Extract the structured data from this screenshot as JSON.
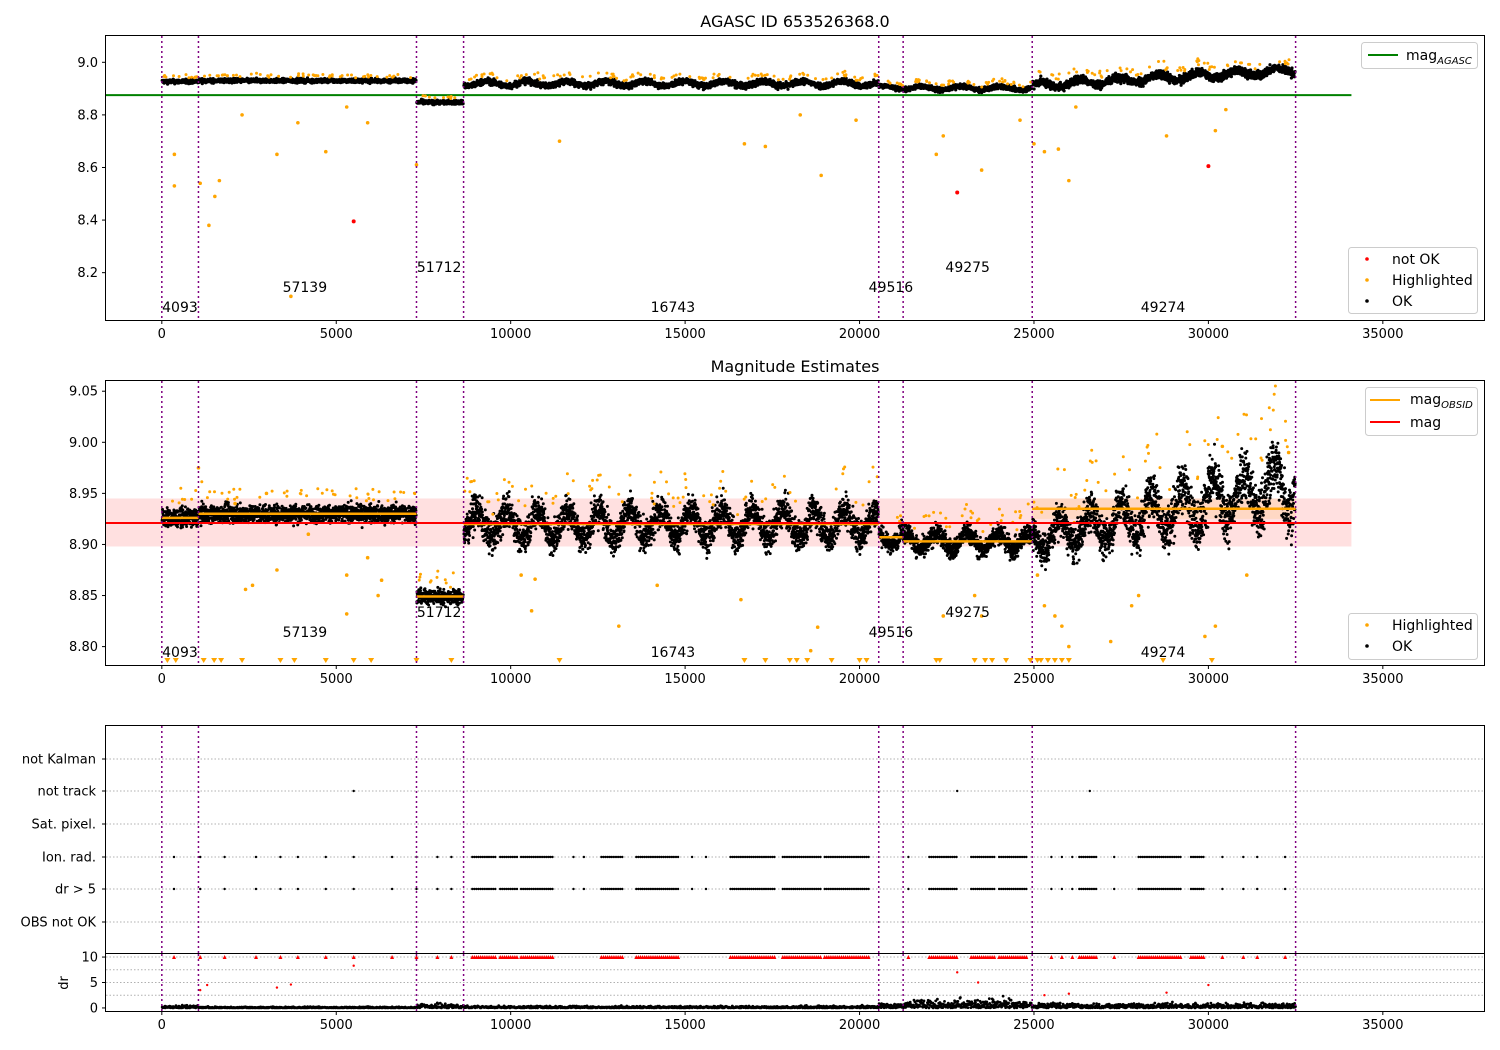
{
  "figure": {
    "background": "#ffffff"
  },
  "colors": {
    "ok": "#000000",
    "highlighted": "#ffa500",
    "not_ok": "#ff0000",
    "agasc_line": "#008000",
    "mag_line": "#ff0000",
    "obsid_line": "#ffa500",
    "obs_boundary": "#800080",
    "grid": "#b0b0b0"
  },
  "obs_boundaries": [
    0,
    1050,
    7300,
    8650,
    20550,
    21250,
    24950,
    32500
  ],
  "obs_labels": [
    {
      "text": "4093",
      "x": 520,
      "panel": "top"
    },
    {
      "text": "57139",
      "x": 4100,
      "panel": "upper"
    },
    {
      "text": "51712",
      "x": 7950,
      "panel": "high"
    },
    {
      "text": "16743",
      "x": 14650,
      "panel": "bottom"
    },
    {
      "text": "49516",
      "x": 20900,
      "panel": "upper"
    },
    {
      "text": "49275",
      "x": 23100,
      "panel": "high"
    },
    {
      "text": "49274",
      "x": 28700,
      "panel": "bottom"
    }
  ],
  "panels": {
    "agasc": {
      "title": "AGASC ID 653526368.0",
      "legend_upper": [
        {
          "label": "mag",
          "sub": "AGASC",
          "color": "#008000"
        }
      ],
      "legend_lower": [
        {
          "label": "not OK",
          "color": "#ff0000"
        },
        {
          "label": "Highlighted",
          "color": "#ffa500"
        },
        {
          "label": "OK",
          "color": "#000000"
        }
      ]
    },
    "estimates": {
      "title": "Magnitude Estimates",
      "legend_upper": [
        {
          "label": "mag",
          "sub": "OBSID",
          "color": "#ffa500"
        },
        {
          "label": "mag",
          "sub": "",
          "color": "#ff0000"
        }
      ],
      "legend_lower": [
        {
          "label": "Highlighted",
          "color": "#ffa500"
        },
        {
          "label": "OK",
          "color": "#000000"
        }
      ]
    },
    "flags": {
      "title": ""
    },
    "dr": {
      "title": ""
    }
  },
  "chart_data": [
    {
      "type": "scatter",
      "title": "AGASC ID 653526368.0",
      "xlabel": "",
      "ylabel": "",
      "xlim": [
        -1600,
        37900
      ],
      "ylim": [
        8.02,
        9.1
      ],
      "xticks": [
        0,
        5000,
        10000,
        15000,
        20000,
        25000,
        30000,
        35000
      ],
      "yticks": [
        8.2,
        8.4,
        8.6,
        8.8,
        9.0
      ],
      "ytick_labels": [
        "8.2",
        "8.4",
        "8.6",
        "8.8",
        "9.0"
      ],
      "legend": "top-right / bottom-right",
      "mag_agasc": 8.875,
      "mag_agasc_xrange": [
        -1600,
        34100
      ],
      "segments": [
        {
          "x0": 0,
          "x1": 1050,
          "mean": 8.927,
          "spread": 0.012
        },
        {
          "x0": 1050,
          "x1": 7300,
          "mean": 8.93,
          "spread": 0.012
        },
        {
          "x0": 7300,
          "x1": 8650,
          "mean": 8.848,
          "spread": 0.012
        },
        {
          "x0": 8650,
          "x1": 20550,
          "mean": 8.919,
          "spread": 0.018
        },
        {
          "x0": 20550,
          "x1": 21250,
          "mean": 8.905,
          "spread": 0.012
        },
        {
          "x0": 21250,
          "x1": 24950,
          "mean": 8.902,
          "spread": 0.014
        },
        {
          "x0": 24950,
          "x1": 32500,
          "mean": 8.935,
          "spread": 0.025
        }
      ],
      "highlighted": [
        [
          360,
          8.65
        ],
        [
          360,
          8.53
        ],
        [
          1100,
          8.54
        ],
        [
          1350,
          8.38
        ],
        [
          1520,
          8.49
        ],
        [
          1650,
          8.55
        ],
        [
          2300,
          8.8
        ],
        [
          3300,
          8.65
        ],
        [
          3700,
          8.11
        ],
        [
          3900,
          8.77
        ],
        [
          4700,
          8.66
        ],
        [
          5300,
          8.83
        ],
        [
          5900,
          8.77
        ],
        [
          7300,
          8.61
        ],
        [
          11400,
          8.7
        ],
        [
          16700,
          8.69
        ],
        [
          17300,
          8.68
        ],
        [
          18300,
          8.8
        ],
        [
          18900,
          8.57
        ],
        [
          19900,
          8.78
        ],
        [
          22200,
          8.65
        ],
        [
          22400,
          8.72
        ],
        [
          23500,
          8.59
        ],
        [
          24600,
          8.78
        ],
        [
          25000,
          8.69
        ],
        [
          25300,
          8.66
        ],
        [
          25700,
          8.67
        ],
        [
          26000,
          8.55
        ],
        [
          26200,
          8.83
        ],
        [
          28800,
          8.72
        ],
        [
          30200,
          8.74
        ],
        [
          30500,
          8.82
        ]
      ],
      "not_ok": [
        [
          5500,
          8.395
        ],
        [
          22800,
          8.505
        ],
        [
          30000,
          8.605
        ]
      ]
    },
    {
      "type": "scatter",
      "title": "Magnitude Estimates",
      "xlabel": "",
      "ylabel": "",
      "xlim": [
        -1600,
        37900
      ],
      "ylim": [
        8.782,
        9.06
      ],
      "xticks": [
        0,
        5000,
        10000,
        15000,
        20000,
        25000,
        30000,
        35000
      ],
      "yticks": [
        8.8,
        8.85,
        8.9,
        8.95,
        9.0,
        9.05
      ],
      "ytick_labels": [
        "8.80",
        "8.85",
        "8.90",
        "8.95",
        "9.00",
        "9.05"
      ],
      "legend": "top-right / bottom-right",
      "mag": 8.921,
      "mag_band": [
        8.898,
        8.945
      ],
      "mag_xrange": [
        -1600,
        34100
      ],
      "mag_obsid": [
        {
          "x0": 0,
          "x1": 1050,
          "value": 8.926
        },
        {
          "x0": 1050,
          "x1": 7300,
          "value": 8.93
        },
        {
          "x0": 7300,
          "x1": 8650,
          "value": 8.849
        },
        {
          "x0": 8650,
          "x1": 20550,
          "value": 8.92
        },
        {
          "x0": 20550,
          "x1": 21250,
          "value": 8.907
        },
        {
          "x0": 21250,
          "x1": 24950,
          "value": 8.903
        },
        {
          "x0": 24950,
          "x1": 32500,
          "value": 8.935
        }
      ],
      "highlighted": [
        [
          1050,
          8.975
        ],
        [
          2100,
          8.94
        ],
        [
          3000,
          8.95
        ],
        [
          2400,
          8.856
        ],
        [
          2600,
          8.86
        ],
        [
          3300,
          8.875
        ],
        [
          4200,
          8.91
        ],
        [
          5300,
          8.87
        ],
        [
          5300,
          8.832
        ],
        [
          5900,
          8.887
        ],
        [
          6300,
          8.865
        ],
        [
          6200,
          8.85
        ],
        [
          10300,
          8.87
        ],
        [
          10600,
          8.835
        ],
        [
          10700,
          8.866
        ],
        [
          13100,
          8.82
        ],
        [
          14200,
          8.86
        ],
        [
          16600,
          8.846
        ],
        [
          18600,
          8.796
        ],
        [
          18800,
          8.819
        ],
        [
          22400,
          8.83
        ],
        [
          23300,
          8.85
        ],
        [
          23500,
          8.83
        ],
        [
          25100,
          8.87
        ],
        [
          25300,
          8.84
        ],
        [
          25600,
          8.83
        ],
        [
          25800,
          8.82
        ],
        [
          26000,
          8.8
        ],
        [
          27200,
          8.805
        ],
        [
          27800,
          8.84
        ],
        [
          28000,
          8.85
        ],
        [
          29900,
          8.81
        ],
        [
          30200,
          8.82
        ],
        [
          31100,
          8.87
        ],
        [
          32300,
          8.99
        ],
        [
          30400,
          8.996
        ]
      ],
      "below_range_x": [
        160,
        400,
        1200,
        1500,
        1700,
        2300,
        3400,
        3800,
        4700,
        5500,
        6000,
        7300,
        8300,
        11400,
        16700,
        17300,
        18000,
        18200,
        18500,
        19200,
        20000,
        20200,
        22200,
        22300,
        23300,
        23600,
        23800,
        24200,
        24900,
        25100,
        25200,
        25400,
        25600,
        25800,
        26000,
        28700,
        30100
      ]
    },
    {
      "type": "scatter",
      "title": "",
      "xlim": [
        -1600,
        37900
      ],
      "categories": [
        "not Kalman",
        "not track",
        "Sat. pixel.",
        "Ion. rad.",
        "dr > 5",
        "OBS not OK"
      ],
      "flag_points": {
        "not track": [
          5500,
          22800,
          26600
        ],
        "ion_dr_dense_ranges": [
          [
            8900,
            9600
          ],
          [
            9700,
            10200
          ],
          [
            10300,
            11200
          ],
          [
            12600,
            13200
          ],
          [
            13600,
            14800
          ],
          [
            16300,
            17600
          ],
          [
            17800,
            18900
          ],
          [
            19000,
            20300
          ],
          [
            22000,
            22800
          ],
          [
            23200,
            23900
          ],
          [
            24000,
            24800
          ],
          [
            26300,
            26800
          ],
          [
            28000,
            29200
          ],
          [
            29500,
            29900
          ]
        ]
      }
    },
    {
      "type": "scatter",
      "title": "",
      "ylabel": "dr",
      "xlim": [
        -1600,
        37900
      ],
      "ylim": [
        -0.6,
        10.6
      ],
      "xticks": [
        0,
        5000,
        10000,
        15000,
        20000,
        25000,
        30000,
        35000
      ],
      "yticks": [
        0,
        5,
        10
      ],
      "ytick_labels": [
        "0",
        "5",
        "10"
      ],
      "capped_value": 10
    }
  ]
}
